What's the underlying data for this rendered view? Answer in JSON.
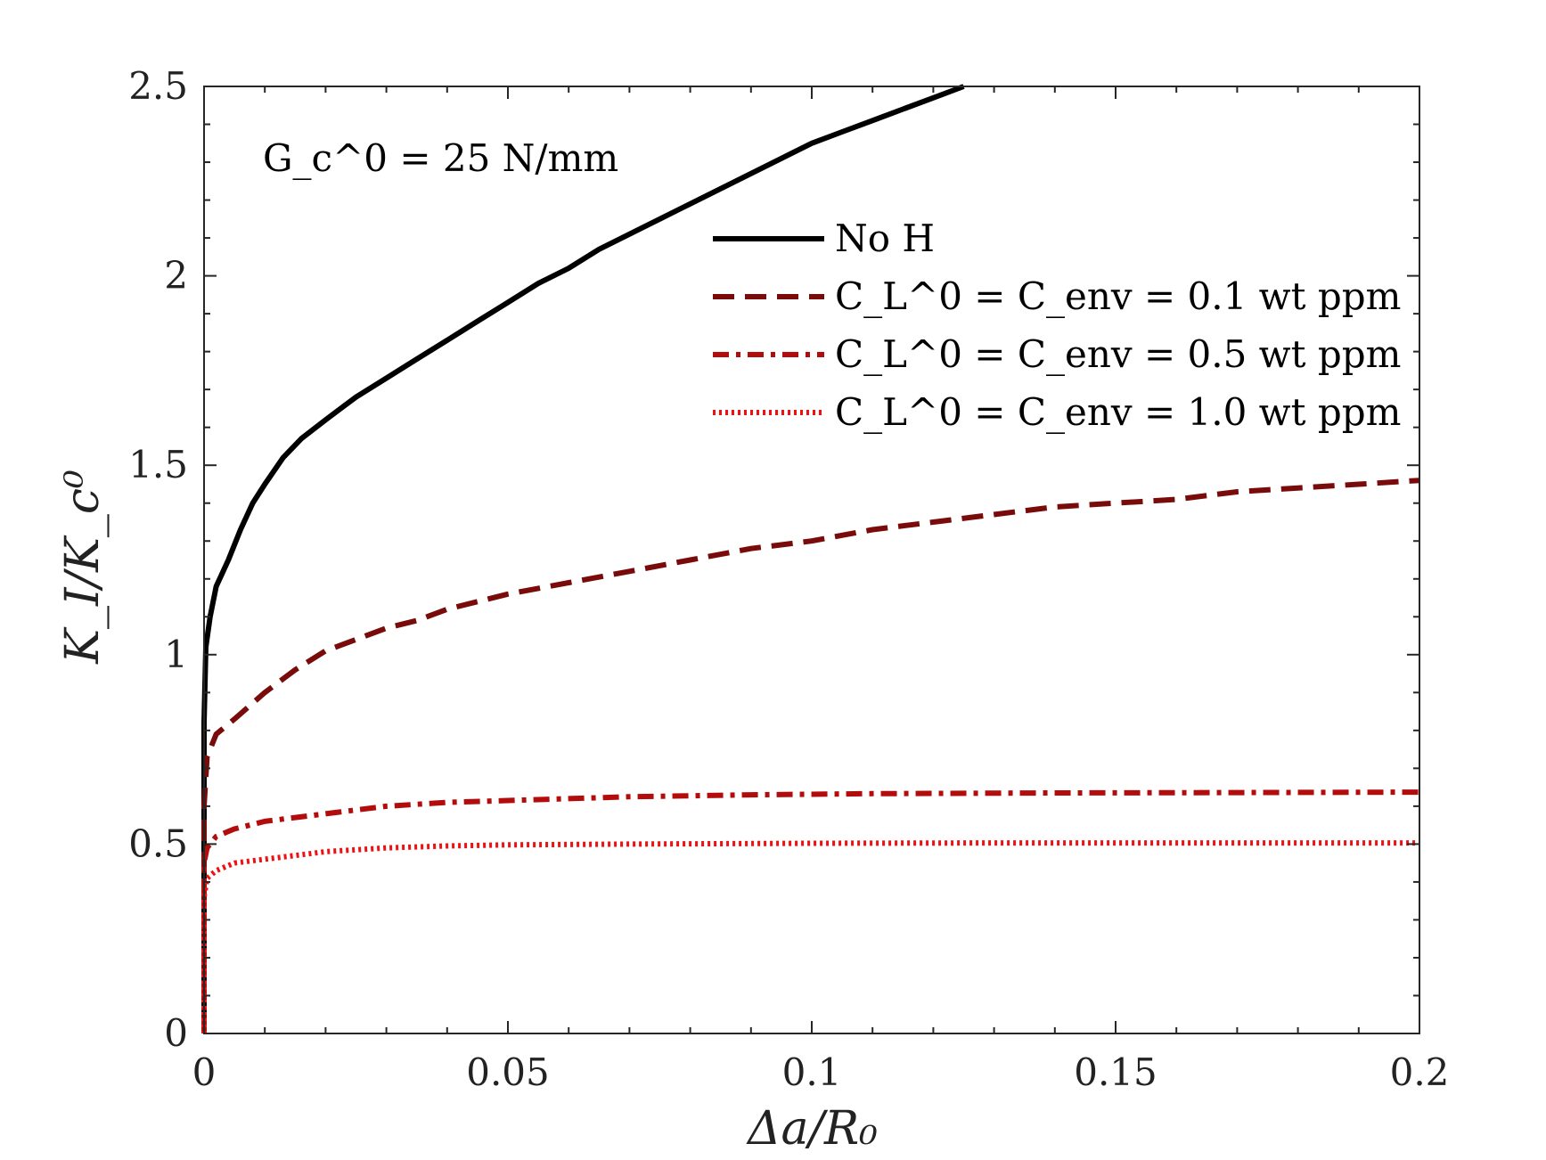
{
  "chart_data": {
    "type": "line",
    "xlabel": "Δa/R₀",
    "ylabel": "K_I/K_c⁰",
    "xlim": [
      0,
      0.2
    ],
    "ylim": [
      0,
      2.5
    ],
    "xticks": [
      0,
      0.05,
      0.1,
      0.15,
      0.2
    ],
    "yticks": [
      0,
      0.5,
      1,
      1.5,
      2,
      2.5
    ],
    "xtick_labels": [
      "0",
      "0.05",
      "0.1",
      "0.15",
      "0.2"
    ],
    "ytick_labels": [
      "0",
      "0.5",
      "1",
      "1.5",
      "2",
      "2.5"
    ],
    "annotation": "G_c^0 = 25 N/mm",
    "legend_position": "top-right",
    "series": [
      {
        "name": "No H",
        "color": "#000000",
        "style": "solid",
        "x": [
          0,
          0,
          0.0003,
          0.001,
          0.002,
          0.004,
          0.006,
          0.008,
          0.01,
          0.013,
          0.016,
          0.02,
          0.025,
          0.03,
          0.035,
          0.04,
          0.045,
          0.05,
          0.055,
          0.06,
          0.065,
          0.07,
          0.075,
          0.08,
          0.085,
          0.09,
          0.095,
          0.1,
          0.105,
          0.11,
          0.115,
          0.12,
          0.125
        ],
        "y": [
          0,
          0.82,
          1.02,
          1.1,
          1.18,
          1.25,
          1.33,
          1.4,
          1.45,
          1.52,
          1.57,
          1.62,
          1.68,
          1.73,
          1.78,
          1.83,
          1.88,
          1.93,
          1.98,
          2.02,
          2.07,
          2.11,
          2.15,
          2.19,
          2.23,
          2.27,
          2.31,
          2.35,
          2.38,
          2.41,
          2.44,
          2.47,
          2.5
        ]
      },
      {
        "name": "C_L^0 = C_env = 0.1 wt ppm",
        "color": "#7a0b0b",
        "style": "dashed",
        "x": [
          0,
          0,
          0.0005,
          0.002,
          0.005,
          0.01,
          0.015,
          0.02,
          0.025,
          0.03,
          0.035,
          0.04,
          0.05,
          0.06,
          0.07,
          0.08,
          0.09,
          0.1,
          0.11,
          0.12,
          0.13,
          0.14,
          0.15,
          0.16,
          0.17,
          0.18,
          0.19,
          0.2
        ],
        "y": [
          0,
          0.6,
          0.73,
          0.79,
          0.83,
          0.9,
          0.96,
          1.01,
          1.04,
          1.07,
          1.09,
          1.12,
          1.16,
          1.19,
          1.22,
          1.25,
          1.28,
          1.3,
          1.33,
          1.35,
          1.37,
          1.39,
          1.4,
          1.41,
          1.43,
          1.44,
          1.45,
          1.46
        ]
      },
      {
        "name": "C_L^0 = C_env = 0.5 wt ppm",
        "color": "#b30c0c",
        "style": "dashdot",
        "x": [
          0,
          0,
          0.0005,
          0.002,
          0.005,
          0.01,
          0.015,
          0.02,
          0.03,
          0.04,
          0.05,
          0.07,
          0.09,
          0.11,
          0.14,
          0.17,
          0.2
        ],
        "y": [
          0,
          0.45,
          0.49,
          0.52,
          0.54,
          0.56,
          0.57,
          0.58,
          0.6,
          0.61,
          0.615,
          0.625,
          0.63,
          0.633,
          0.635,
          0.636,
          0.637
        ]
      },
      {
        "name": "C_L^0 = C_env = 1.0 wt ppm",
        "color": "#ee1111",
        "style": "dotted",
        "x": [
          0,
          0,
          0.0005,
          0.002,
          0.005,
          0.01,
          0.015,
          0.02,
          0.03,
          0.04,
          0.05,
          0.07,
          0.1,
          0.13,
          0.16,
          0.2
        ],
        "y": [
          0,
          0.36,
          0.41,
          0.43,
          0.45,
          0.46,
          0.47,
          0.48,
          0.49,
          0.495,
          0.498,
          0.5,
          0.502,
          0.503,
          0.503,
          0.503
        ]
      }
    ]
  }
}
